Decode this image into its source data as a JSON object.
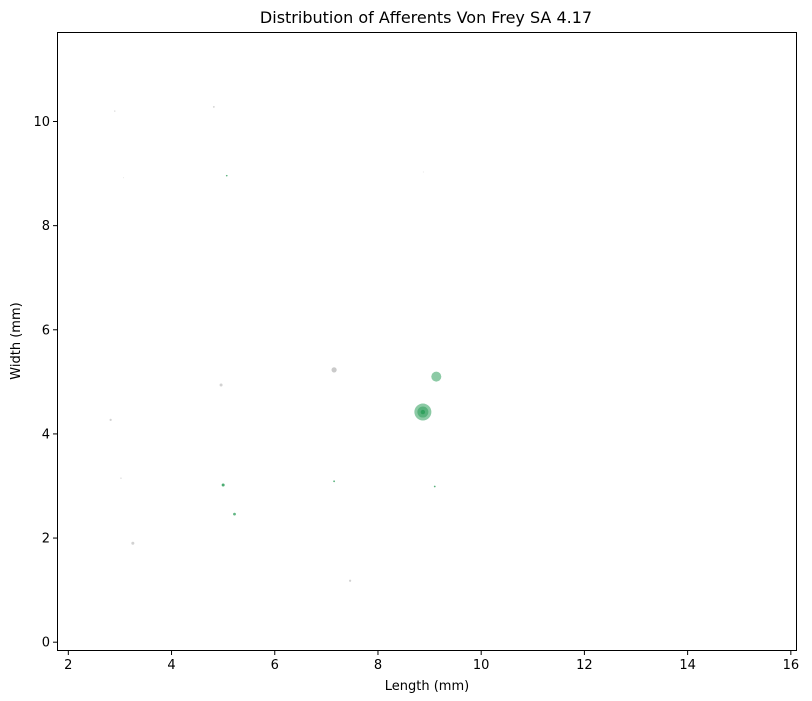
{
  "chart_data": {
    "type": "scatter",
    "title": "Distribution of Afferents Von Frey SA 4.17",
    "xlabel": "Length (mm)",
    "ylabel": "Width (mm)",
    "xlim": [
      1.8,
      16.1
    ],
    "ylim": [
      -0.15,
      11.7
    ],
    "xticks": [
      2,
      4,
      6,
      8,
      10,
      12,
      14,
      16
    ],
    "yticks": [
      0,
      2,
      4,
      6,
      8,
      10
    ],
    "grid": false,
    "legend": "none",
    "colors": {
      "green": "#2e9e5b",
      "gray": "#b4b4b4"
    },
    "points": [
      {
        "x": 8.87,
        "y": 4.42,
        "size": 8.5,
        "color": "green",
        "opacity": 0.55
      },
      {
        "x": 8.87,
        "y": 4.42,
        "size": 5.5,
        "color": "green",
        "opacity": 0.55
      },
      {
        "x": 8.87,
        "y": 4.42,
        "size": 2.2,
        "color": "green",
        "opacity": 0.9
      },
      {
        "x": 9.13,
        "y": 5.1,
        "size": 5.0,
        "color": "green",
        "opacity": 0.55
      },
      {
        "x": 5.0,
        "y": 3.02,
        "size": 1.5,
        "color": "green",
        "opacity": 0.85
      },
      {
        "x": 5.22,
        "y": 2.46,
        "size": 1.4,
        "color": "green",
        "opacity": 0.75
      },
      {
        "x": 7.15,
        "y": 3.09,
        "size": 0.9,
        "color": "green",
        "opacity": 0.8
      },
      {
        "x": 9.1,
        "y": 2.99,
        "size": 0.9,
        "color": "green",
        "opacity": 0.8
      },
      {
        "x": 5.07,
        "y": 8.96,
        "size": 0.8,
        "color": "green",
        "opacity": 0.8
      },
      {
        "x": 7.15,
        "y": 5.23,
        "size": 2.6,
        "color": "gray",
        "opacity": 0.7
      },
      {
        "x": 4.96,
        "y": 4.94,
        "size": 1.5,
        "color": "gray",
        "opacity": 0.6
      },
      {
        "x": 3.25,
        "y": 1.9,
        "size": 1.5,
        "color": "gray",
        "opacity": 0.6
      },
      {
        "x": 2.82,
        "y": 4.27,
        "size": 1.1,
        "color": "gray",
        "opacity": 0.6
      },
      {
        "x": 7.46,
        "y": 1.18,
        "size": 1.1,
        "color": "gray",
        "opacity": 0.6
      },
      {
        "x": 4.82,
        "y": 10.28,
        "size": 0.9,
        "color": "gray",
        "opacity": 0.6
      },
      {
        "x": 2.9,
        "y": 10.2,
        "size": 0.7,
        "color": "gray",
        "opacity": 0.5
      },
      {
        "x": 3.02,
        "y": 3.15,
        "size": 0.7,
        "color": "gray",
        "opacity": 0.5
      },
      {
        "x": 3.07,
        "y": 8.92,
        "size": 0.5,
        "color": "gray",
        "opacity": 0.4
      },
      {
        "x": 8.88,
        "y": 9.03,
        "size": 0.5,
        "color": "gray",
        "opacity": 0.4
      }
    ]
  }
}
